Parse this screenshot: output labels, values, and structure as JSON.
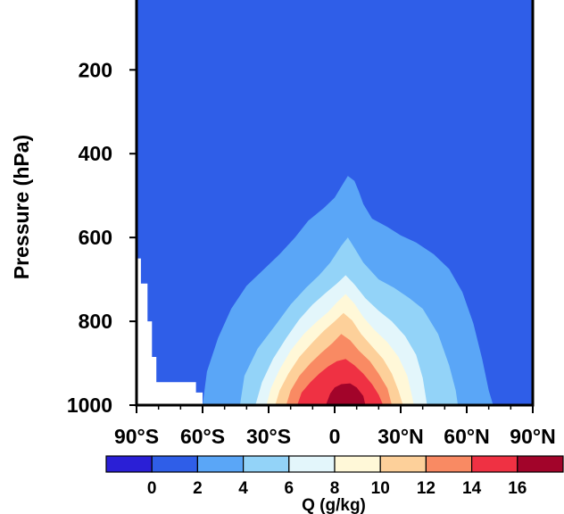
{
  "chart_data": {
    "type": "contour",
    "title": "",
    "xlabel": "",
    "ylabel": "Pressure (hPa)",
    "colorbar_label": "Q (g/kg)",
    "x_ticks": [
      {
        "value": -90,
        "label": "90°S"
      },
      {
        "value": -60,
        "label": "60°S"
      },
      {
        "value": -30,
        "label": "30°S"
      },
      {
        "value": 0,
        "label": "0"
      },
      {
        "value": 30,
        "label": "30°N"
      },
      {
        "value": 60,
        "label": "60°N"
      },
      {
        "value": 90,
        "label": "90°N"
      }
    ],
    "y_ticks": [
      {
        "value": 200,
        "label": "200"
      },
      {
        "value": 400,
        "label": "400"
      },
      {
        "value": 600,
        "label": "600"
      },
      {
        "value": 800,
        "label": "800"
      },
      {
        "value": 1000,
        "label": "1000"
      }
    ],
    "xlim": [
      -90,
      90
    ],
    "ylim": [
      1000,
      12
    ],
    "colorbar": {
      "levels": [
        0,
        2,
        4,
        6,
        8,
        10,
        12,
        14,
        16
      ],
      "level_labels": [
        "0",
        "2",
        "4",
        "6",
        "8",
        "10",
        "12",
        "14",
        "16"
      ],
      "colors": [
        "#2a1fd6",
        "#2f5ee8",
        "#5aa6f7",
        "#93d3f8",
        "#e3f6fb",
        "#fff8d8",
        "#fdd09a",
        "#f98a63",
        "#ef3143",
        "#a2042a"
      ]
    },
    "background_color": "#2f5ee8",
    "missing_color": "#ffffff",
    "missing_region": [
      [
        -90,
        650
      ],
      [
        -88,
        650
      ],
      [
        -88,
        710
      ],
      [
        -85,
        710
      ],
      [
        -85,
        800
      ],
      [
        -83,
        800
      ],
      [
        -83,
        885
      ],
      [
        -81,
        885
      ],
      [
        -81,
        945
      ],
      [
        -63,
        945
      ],
      [
        -63,
        970
      ],
      [
        -60,
        970
      ],
      [
        -60,
        1000
      ],
      [
        -90,
        1000
      ]
    ],
    "contours": [
      {
        "level": 2,
        "color": "#5aa6f7",
        "points": [
          [
            -60,
            1000
          ],
          [
            -58,
            920
          ],
          [
            -53,
            840
          ],
          [
            -47,
            770
          ],
          [
            -40,
            715
          ],
          [
            -33,
            680
          ],
          [
            -25,
            640
          ],
          [
            -18,
            600
          ],
          [
            -12,
            560
          ],
          [
            -5,
            530
          ],
          [
            0,
            505
          ],
          [
            4,
            470
          ],
          [
            6,
            453
          ],
          [
            9,
            465
          ],
          [
            11,
            490
          ],
          [
            13,
            520
          ],
          [
            17,
            555
          ],
          [
            24,
            575
          ],
          [
            30,
            595
          ],
          [
            37,
            612
          ],
          [
            45,
            640
          ],
          [
            52,
            675
          ],
          [
            58,
            730
          ],
          [
            63,
            805
          ],
          [
            67,
            890
          ],
          [
            70,
            965
          ],
          [
            72,
            1000
          ]
        ]
      },
      {
        "level": 4,
        "color": "#93d3f8",
        "points": [
          [
            -43,
            1000
          ],
          [
            -41,
            930
          ],
          [
            -35,
            865
          ],
          [
            -27,
            810
          ],
          [
            -20,
            760
          ],
          [
            -13,
            720
          ],
          [
            -7,
            690
          ],
          [
            -2,
            660
          ],
          [
            3,
            620
          ],
          [
            6,
            600
          ],
          [
            9,
            625
          ],
          [
            13,
            660
          ],
          [
            20,
            700
          ],
          [
            27,
            720
          ],
          [
            34,
            745
          ],
          [
            40,
            770
          ],
          [
            47,
            830
          ],
          [
            52,
            905
          ],
          [
            55,
            965
          ],
          [
            56,
            1000
          ]
        ]
      },
      {
        "level": 6,
        "color": "#e3f6fb",
        "points": [
          [
            -36,
            1000
          ],
          [
            -33,
            945
          ],
          [
            -28,
            890
          ],
          [
            -22,
            840
          ],
          [
            -16,
            795
          ],
          [
            -10,
            760
          ],
          [
            -4,
            732
          ],
          [
            1,
            710
          ],
          [
            5,
            690
          ],
          [
            9,
            712
          ],
          [
            14,
            745
          ],
          [
            20,
            775
          ],
          [
            26,
            800
          ],
          [
            32,
            835
          ],
          [
            37,
            880
          ],
          [
            40,
            935
          ],
          [
            42,
            1000
          ]
        ]
      },
      {
        "level": 8,
        "color": "#fff8d8",
        "points": [
          [
            -31,
            1000
          ],
          [
            -29,
            960
          ],
          [
            -25,
            915
          ],
          [
            -20,
            870
          ],
          [
            -14,
            830
          ],
          [
            -8,
            800
          ],
          [
            -3,
            778
          ],
          [
            1,
            755
          ],
          [
            5,
            735
          ],
          [
            9,
            758
          ],
          [
            13,
            790
          ],
          [
            18,
            820
          ],
          [
            24,
            850
          ],
          [
            29,
            885
          ],
          [
            33,
            930
          ],
          [
            35,
            975
          ],
          [
            36,
            1000
          ]
        ]
      },
      {
        "level": 10,
        "color": "#fdd09a",
        "points": [
          [
            -27,
            1000
          ],
          [
            -25,
            965
          ],
          [
            -21,
            925
          ],
          [
            -16,
            885
          ],
          [
            -10,
            850
          ],
          [
            -5,
            823
          ],
          [
            0,
            800
          ],
          [
            4,
            780
          ],
          [
            8,
            798
          ],
          [
            12,
            830
          ],
          [
            17,
            860
          ],
          [
            22,
            890
          ],
          [
            26,
            925
          ],
          [
            29,
            965
          ],
          [
            31,
            1000
          ]
        ]
      },
      {
        "level": 12,
        "color": "#f98a63",
        "points": [
          [
            -22,
            1000
          ],
          [
            -20,
            965
          ],
          [
            -16,
            930
          ],
          [
            -11,
            900
          ],
          [
            -6,
            875
          ],
          [
            -1,
            852
          ],
          [
            3,
            830
          ],
          [
            7,
            845
          ],
          [
            11,
            870
          ],
          [
            16,
            895
          ],
          [
            20,
            925
          ],
          [
            24,
            960
          ],
          [
            26,
            1000
          ]
        ]
      },
      {
        "level": 14,
        "color": "#ef3143",
        "points": [
          [
            -17,
            1000
          ],
          [
            -15,
            970
          ],
          [
            -11,
            945
          ],
          [
            -7,
            925
          ],
          [
            -3,
            908
          ],
          [
            1,
            895
          ],
          [
            5,
            890
          ],
          [
            9,
            905
          ],
          [
            13,
            925
          ],
          [
            17,
            950
          ],
          [
            20,
            975
          ],
          [
            22,
            1000
          ]
        ]
      },
      {
        "level": 16,
        "color": "#a2042a",
        "points": [
          [
            -4,
            1000
          ],
          [
            -2,
            972
          ],
          [
            0,
            958
          ],
          [
            3,
            950
          ],
          [
            7,
            948
          ],
          [
            10,
            958
          ],
          [
            13,
            978
          ],
          [
            14,
            1000
          ]
        ]
      }
    ]
  }
}
